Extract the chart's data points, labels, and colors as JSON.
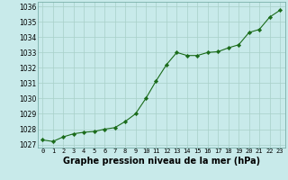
{
  "x": [
    0,
    1,
    2,
    3,
    4,
    5,
    6,
    7,
    8,
    9,
    10,
    11,
    12,
    13,
    14,
    15,
    16,
    17,
    18,
    19,
    20,
    21,
    22,
    23
  ],
  "y": [
    1027.3,
    1027.2,
    1027.5,
    1027.7,
    1027.8,
    1027.85,
    1028.0,
    1028.1,
    1028.5,
    1029.0,
    1030.0,
    1031.15,
    1032.2,
    1033.0,
    1032.8,
    1032.8,
    1033.0,
    1033.05,
    1033.3,
    1033.5,
    1034.3,
    1034.5,
    1035.3,
    1035.75
  ],
  "line_color": "#1a6b1a",
  "marker_color": "#1a6b1a",
  "bg_color": "#c8eaea",
  "grid_color": "#a8d0c8",
  "xlabel": "Graphe pression niveau de la mer (hPa)",
  "xlabel_fontsize": 7,
  "ylabel_ticks": [
    1027,
    1028,
    1029,
    1030,
    1031,
    1032,
    1033,
    1034,
    1035,
    1036
  ],
  "ylim": [
    1026.8,
    1036.3
  ],
  "xlim": [
    -0.5,
    23.5
  ],
  "xtick_fontsize": 5,
  "ytick_fontsize": 5.5
}
